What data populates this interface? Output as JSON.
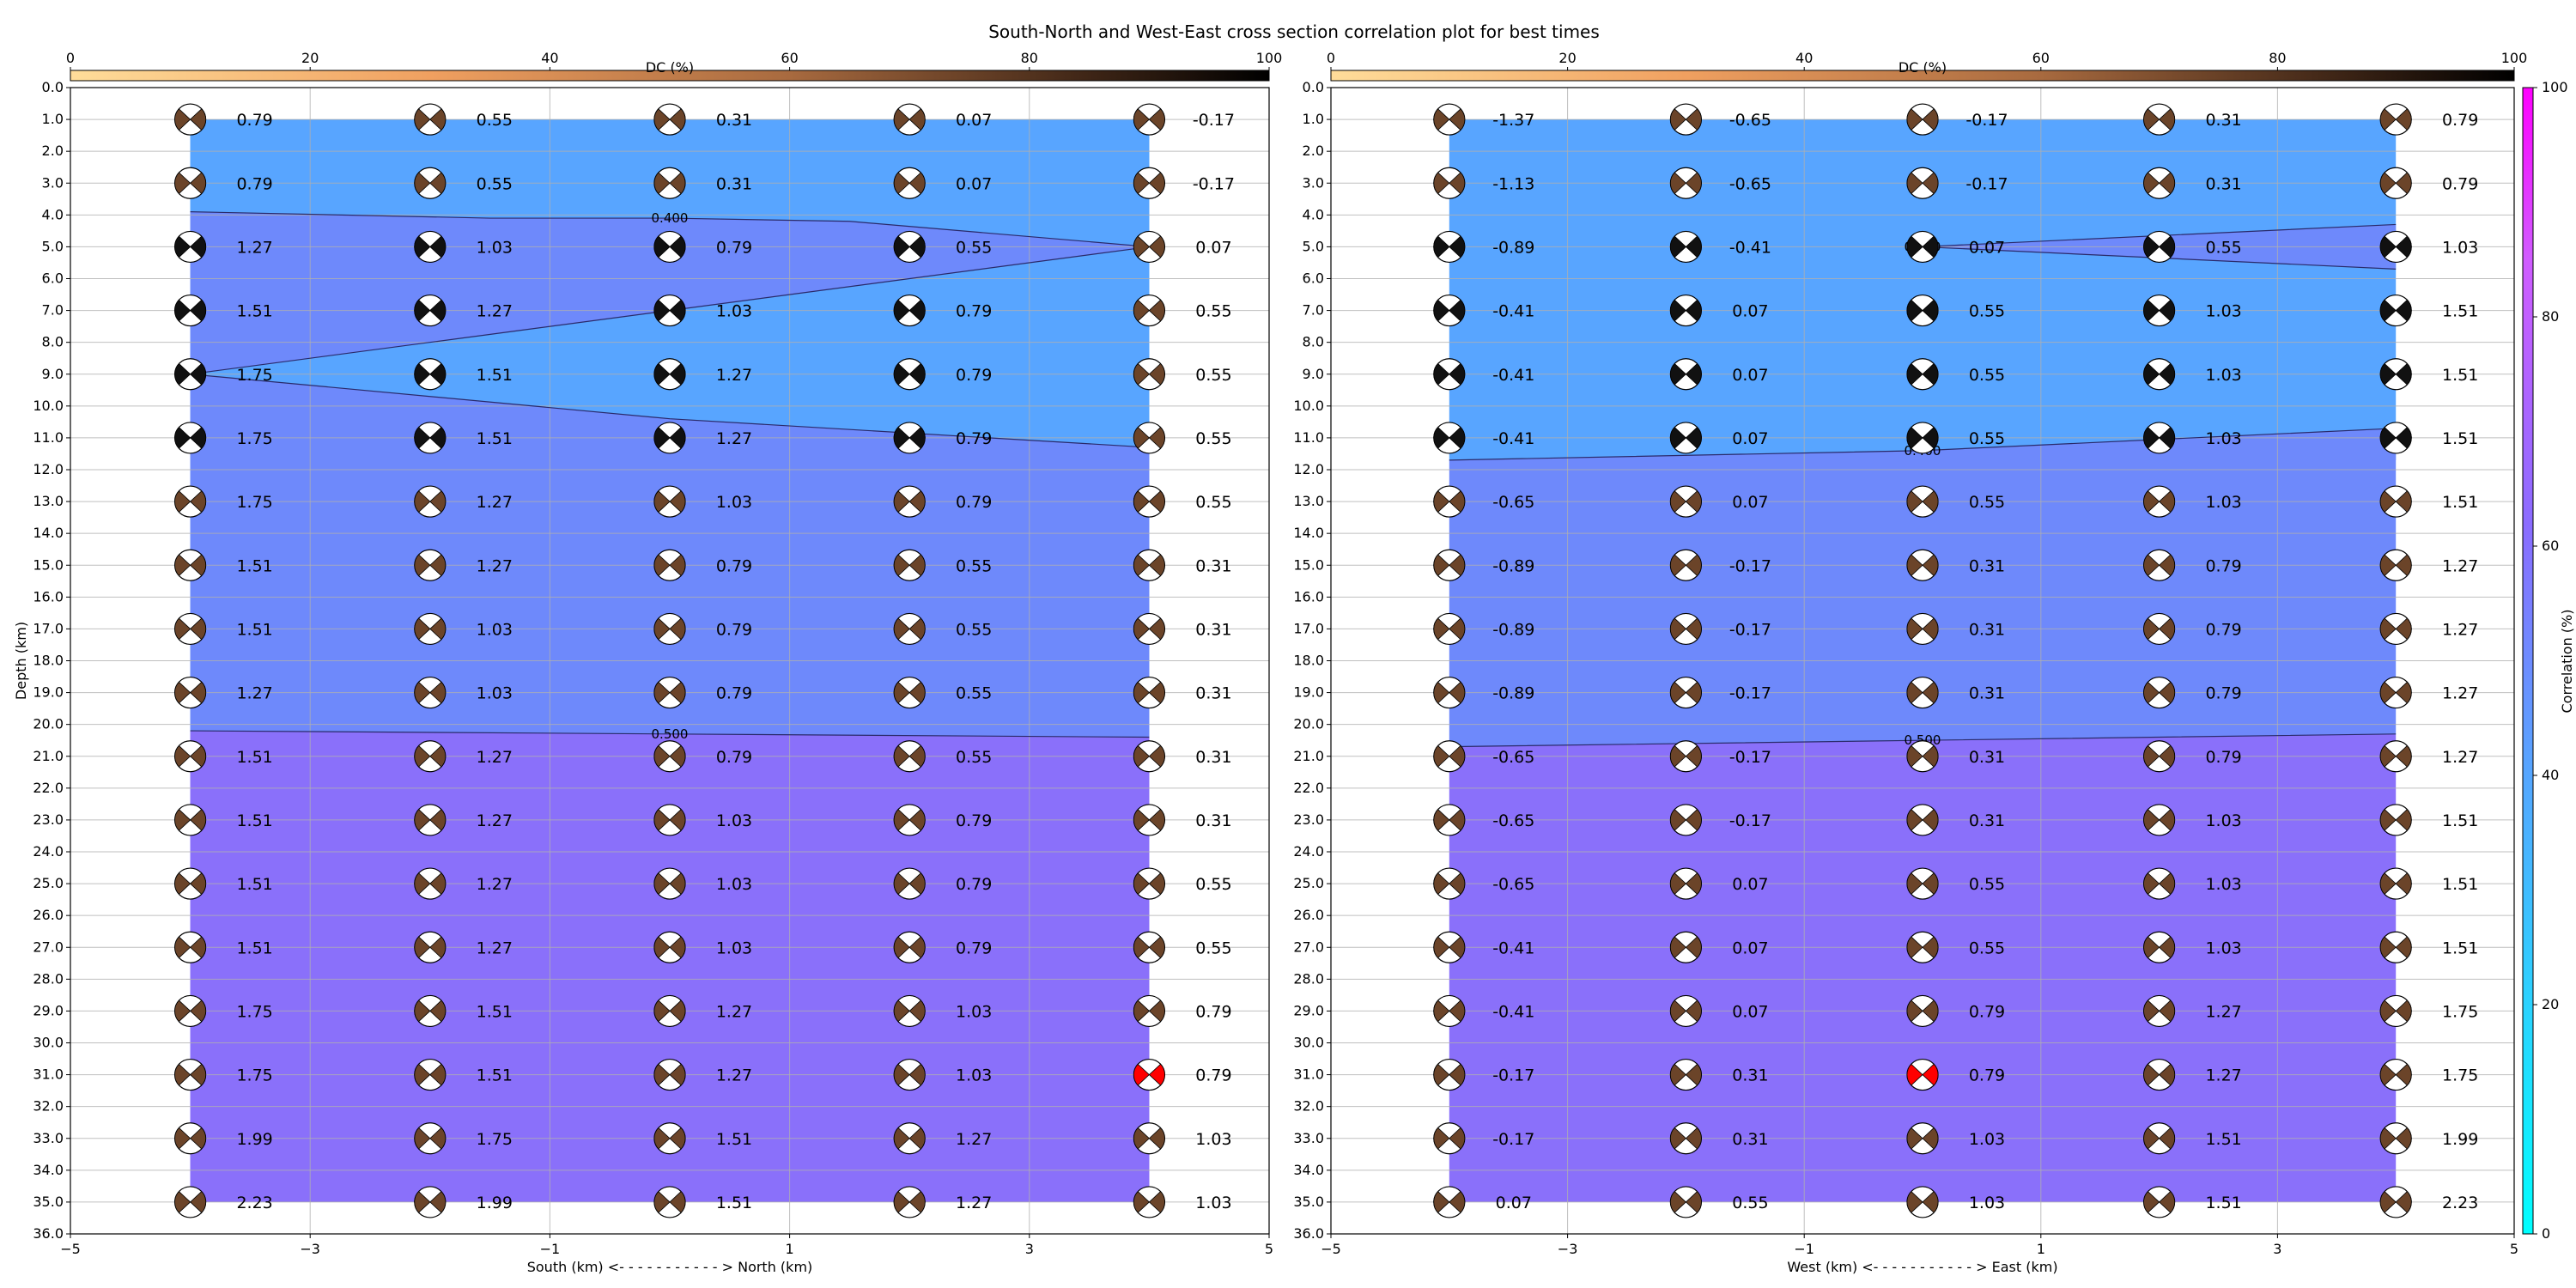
{
  "figure": {
    "title": "South-North and West-East cross section correlation plot for best times"
  },
  "colors": {
    "dc_colormap": [
      "#ffdd9a",
      "#f0a060",
      "#a86a3f",
      "#5a3522",
      "#000000"
    ],
    "correlation_colormap": [
      "#00ffff",
      "#55a6ff",
      "#8b6cff",
      "#d05cff",
      "#ff00ff"
    ],
    "highlight": "#ff0000",
    "beachball_fill_default": "#6b4429"
  },
  "chart_data": [
    {
      "type": "heatmap",
      "panel": "south-north",
      "xlabel": "South (km) <- - - - - - - - - - - > North (km)",
      "ylabel": "Depth (km)",
      "xlim": [
        -5,
        5
      ],
      "ylim": [
        36,
        0
      ],
      "xticks": [
        "−5",
        "−3",
        "−1",
        "1",
        "3",
        "5"
      ],
      "yticks": [
        "0.0",
        "1.0",
        "2.0",
        "3.0",
        "4.0",
        "5.0",
        "6.0",
        "7.0",
        "8.0",
        "9.0",
        "10.0",
        "11.0",
        "12.0",
        "13.0",
        "14.0",
        "15.0",
        "16.0",
        "17.0",
        "18.0",
        "19.0",
        "20.0",
        "21.0",
        "22.0",
        "23.0",
        "24.0",
        "25.0",
        "26.0",
        "27.0",
        "28.0",
        "29.0",
        "30.0",
        "31.0",
        "32.0",
        "33.0",
        "34.0",
        "35.0",
        "36.0"
      ],
      "dc_label": "DC (%)",
      "dc_ticks": [
        "0",
        "20",
        "40",
        "60",
        "80",
        "100"
      ],
      "grid": true,
      "x": [
        -4,
        -2,
        0,
        2,
        4
      ],
      "depths": [
        1,
        3,
        5,
        7,
        9,
        11,
        13,
        15,
        17,
        19,
        21,
        23,
        25,
        27,
        29,
        31,
        33,
        35
      ],
      "values": [
        [
          "0.79",
          "0.55",
          "0.31",
          "0.07",
          "-0.17"
        ],
        [
          "0.79",
          "0.55",
          "0.31",
          "0.07",
          "-0.17"
        ],
        [
          "1.27",
          "1.03",
          "0.79",
          "0.55",
          "0.07"
        ],
        [
          "1.51",
          "1.27",
          "1.03",
          "0.79",
          "0.55"
        ],
        [
          "1.75",
          "1.51",
          "1.27",
          "0.79",
          "0.55"
        ],
        [
          "1.75",
          "1.51",
          "1.27",
          "0.79",
          "0.55"
        ],
        [
          "1.75",
          "1.27",
          "1.03",
          "0.79",
          "0.55"
        ],
        [
          "1.51",
          "1.27",
          "0.79",
          "0.55",
          "0.31"
        ],
        [
          "1.51",
          "1.03",
          "0.79",
          "0.55",
          "0.31"
        ],
        [
          "1.27",
          "1.03",
          "0.79",
          "0.55",
          "0.31"
        ],
        [
          "1.51",
          "1.27",
          "0.79",
          "0.55",
          "0.31"
        ],
        [
          "1.51",
          "1.27",
          "1.03",
          "0.79",
          "0.31"
        ],
        [
          "1.51",
          "1.27",
          "1.03",
          "0.79",
          "0.55"
        ],
        [
          "1.51",
          "1.27",
          "1.03",
          "0.79",
          "0.55"
        ],
        [
          "1.75",
          "1.51",
          "1.27",
          "1.03",
          "0.79"
        ],
        [
          "1.75",
          "1.51",
          "1.27",
          "1.03",
          "0.79"
        ],
        [
          "1.99",
          "1.75",
          "1.51",
          "1.27",
          "1.03"
        ],
        [
          "2.23",
          "1.99",
          "1.51",
          "1.27",
          "1.03"
        ]
      ],
      "best": {
        "x": 4,
        "depth": 31
      },
      "contours": [
        {
          "label": "0.400",
          "points": [
            [
              -4,
              3.9
            ],
            [
              -1.5,
              4.1
            ],
            [
              0,
              4.1
            ],
            [
              1.5,
              4.2
            ],
            [
              4,
              5.0
            ],
            [
              -4,
              9.0
            ],
            [
              0,
              10.4
            ],
            [
              4,
              11.3
            ]
          ]
        },
        {
          "label": "0.500",
          "points": [
            [
              -4,
              20.2
            ],
            [
              0,
              20.3
            ],
            [
              4,
              20.4
            ]
          ]
        }
      ]
    },
    {
      "type": "heatmap",
      "panel": "west-east",
      "xlabel": "West (km) <- - - - - - - - - - - > East (km)",
      "ylabel": "",
      "xlim": [
        -5,
        5
      ],
      "ylim": [
        36,
        0
      ],
      "xticks": [
        "−5",
        "−3",
        "−1",
        "1",
        "3",
        "5"
      ],
      "yticks": [
        "0.0",
        "1.0",
        "2.0",
        "3.0",
        "4.0",
        "5.0",
        "6.0",
        "7.0",
        "8.0",
        "9.0",
        "10.0",
        "11.0",
        "12.0",
        "13.0",
        "14.0",
        "15.0",
        "16.0",
        "17.0",
        "18.0",
        "19.0",
        "20.0",
        "21.0",
        "22.0",
        "23.0",
        "24.0",
        "25.0",
        "26.0",
        "27.0",
        "28.0",
        "29.0",
        "30.0",
        "31.0",
        "32.0",
        "33.0",
        "34.0",
        "35.0",
        "36.0"
      ],
      "dc_label": "DC (%)",
      "dc_ticks": [
        "0",
        "20",
        "40",
        "60",
        "80",
        "100"
      ],
      "grid": true,
      "x": [
        -4,
        -2,
        0,
        2,
        4
      ],
      "depths": [
        1,
        3,
        5,
        7,
        9,
        11,
        13,
        15,
        17,
        19,
        21,
        23,
        25,
        27,
        29,
        31,
        33,
        35
      ],
      "values": [
        [
          "-1.37",
          "-0.65",
          "-0.17",
          "0.31",
          "0.79"
        ],
        [
          "-1.13",
          "-0.65",
          "-0.17",
          "0.31",
          "0.79"
        ],
        [
          "-0.89",
          "-0.41",
          "0.07",
          "0.55",
          "1.03"
        ],
        [
          "-0.41",
          "0.07",
          "0.55",
          "1.03",
          "1.51"
        ],
        [
          "-0.41",
          "0.07",
          "0.55",
          "1.03",
          "1.51"
        ],
        [
          "-0.41",
          "0.07",
          "0.55",
          "1.03",
          "1.51"
        ],
        [
          "-0.65",
          "0.07",
          "0.55",
          "1.03",
          "1.51"
        ],
        [
          "-0.89",
          "-0.17",
          "0.31",
          "0.79",
          "1.27"
        ],
        [
          "-0.89",
          "-0.17",
          "0.31",
          "0.79",
          "1.27"
        ],
        [
          "-0.89",
          "-0.17",
          "0.31",
          "0.79",
          "1.27"
        ],
        [
          "-0.65",
          "-0.17",
          "0.31",
          "0.79",
          "1.27"
        ],
        [
          "-0.65",
          "-0.17",
          "0.31",
          "1.03",
          "1.51"
        ],
        [
          "-0.65",
          "0.07",
          "0.55",
          "1.03",
          "1.51"
        ],
        [
          "-0.41",
          "0.07",
          "0.55",
          "1.03",
          "1.51"
        ],
        [
          "-0.41",
          "0.07",
          "0.79",
          "1.27",
          "1.75"
        ],
        [
          "-0.17",
          "0.31",
          "0.79",
          "1.27",
          "1.75"
        ],
        [
          "-0.17",
          "0.31",
          "1.03",
          "1.51",
          "1.99"
        ],
        [
          "0.07",
          "0.55",
          "1.03",
          "1.51",
          "2.23"
        ]
      ],
      "best": {
        "x": 0,
        "depth": 31
      },
      "contours": [
        {
          "label": "0.400",
          "points": [
            [
              0,
              5.0
            ],
            [
              4,
              4.3
            ],
            [
              0,
              5.0
            ],
            [
              4,
              5.7
            ]
          ]
        },
        {
          "label": "0.400",
          "points": [
            [
              -4,
              11.7
            ],
            [
              0,
              11.4
            ],
            [
              4,
              10.7
            ]
          ]
        },
        {
          "label": "0.500",
          "points": [
            [
              -4,
              20.7
            ],
            [
              0,
              20.5
            ],
            [
              4,
              20.3
            ]
          ]
        }
      ],
      "colorbar": {
        "label": "Correlation (%)",
        "ticks": [
          "0",
          "20",
          "40",
          "60",
          "80",
          "100"
        ]
      }
    }
  ]
}
